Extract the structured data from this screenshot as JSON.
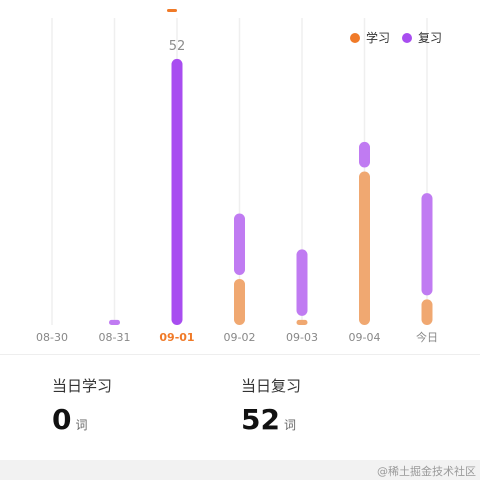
{
  "chart_data": {
    "type": "bar",
    "stacked": true,
    "categories": [
      "08-30",
      "08-31",
      "09-01",
      "09-02",
      "09-03",
      "09-04",
      "今日"
    ],
    "selected_category": "09-01",
    "series": [
      {
        "name": "学习",
        "color": "#f0a871",
        "values": [
          0,
          0,
          0,
          9,
          1,
          30,
          5
        ]
      },
      {
        "name": "复习",
        "color": "#c07bf2",
        "values": [
          0,
          1,
          52,
          12,
          13,
          5,
          20
        ]
      }
    ],
    "selected_color": "#a84df0",
    "selected_label_color": "#f07a28",
    "data_label": {
      "category": "09-01",
      "text": "52"
    },
    "ylim": [
      0,
      60
    ],
    "grid": true,
    "legend": "top-right"
  },
  "legend": {
    "items": [
      {
        "label": "学习",
        "color": "#f07a28"
      },
      {
        "label": "复习",
        "color": "#a84df0"
      }
    ]
  },
  "stats": {
    "study": {
      "label": "当日学习",
      "value": "0",
      "unit": "词"
    },
    "review": {
      "label": "当日复习",
      "value": "52",
      "unit": "词"
    }
  },
  "watermark": "@稀土掘金技术社区"
}
